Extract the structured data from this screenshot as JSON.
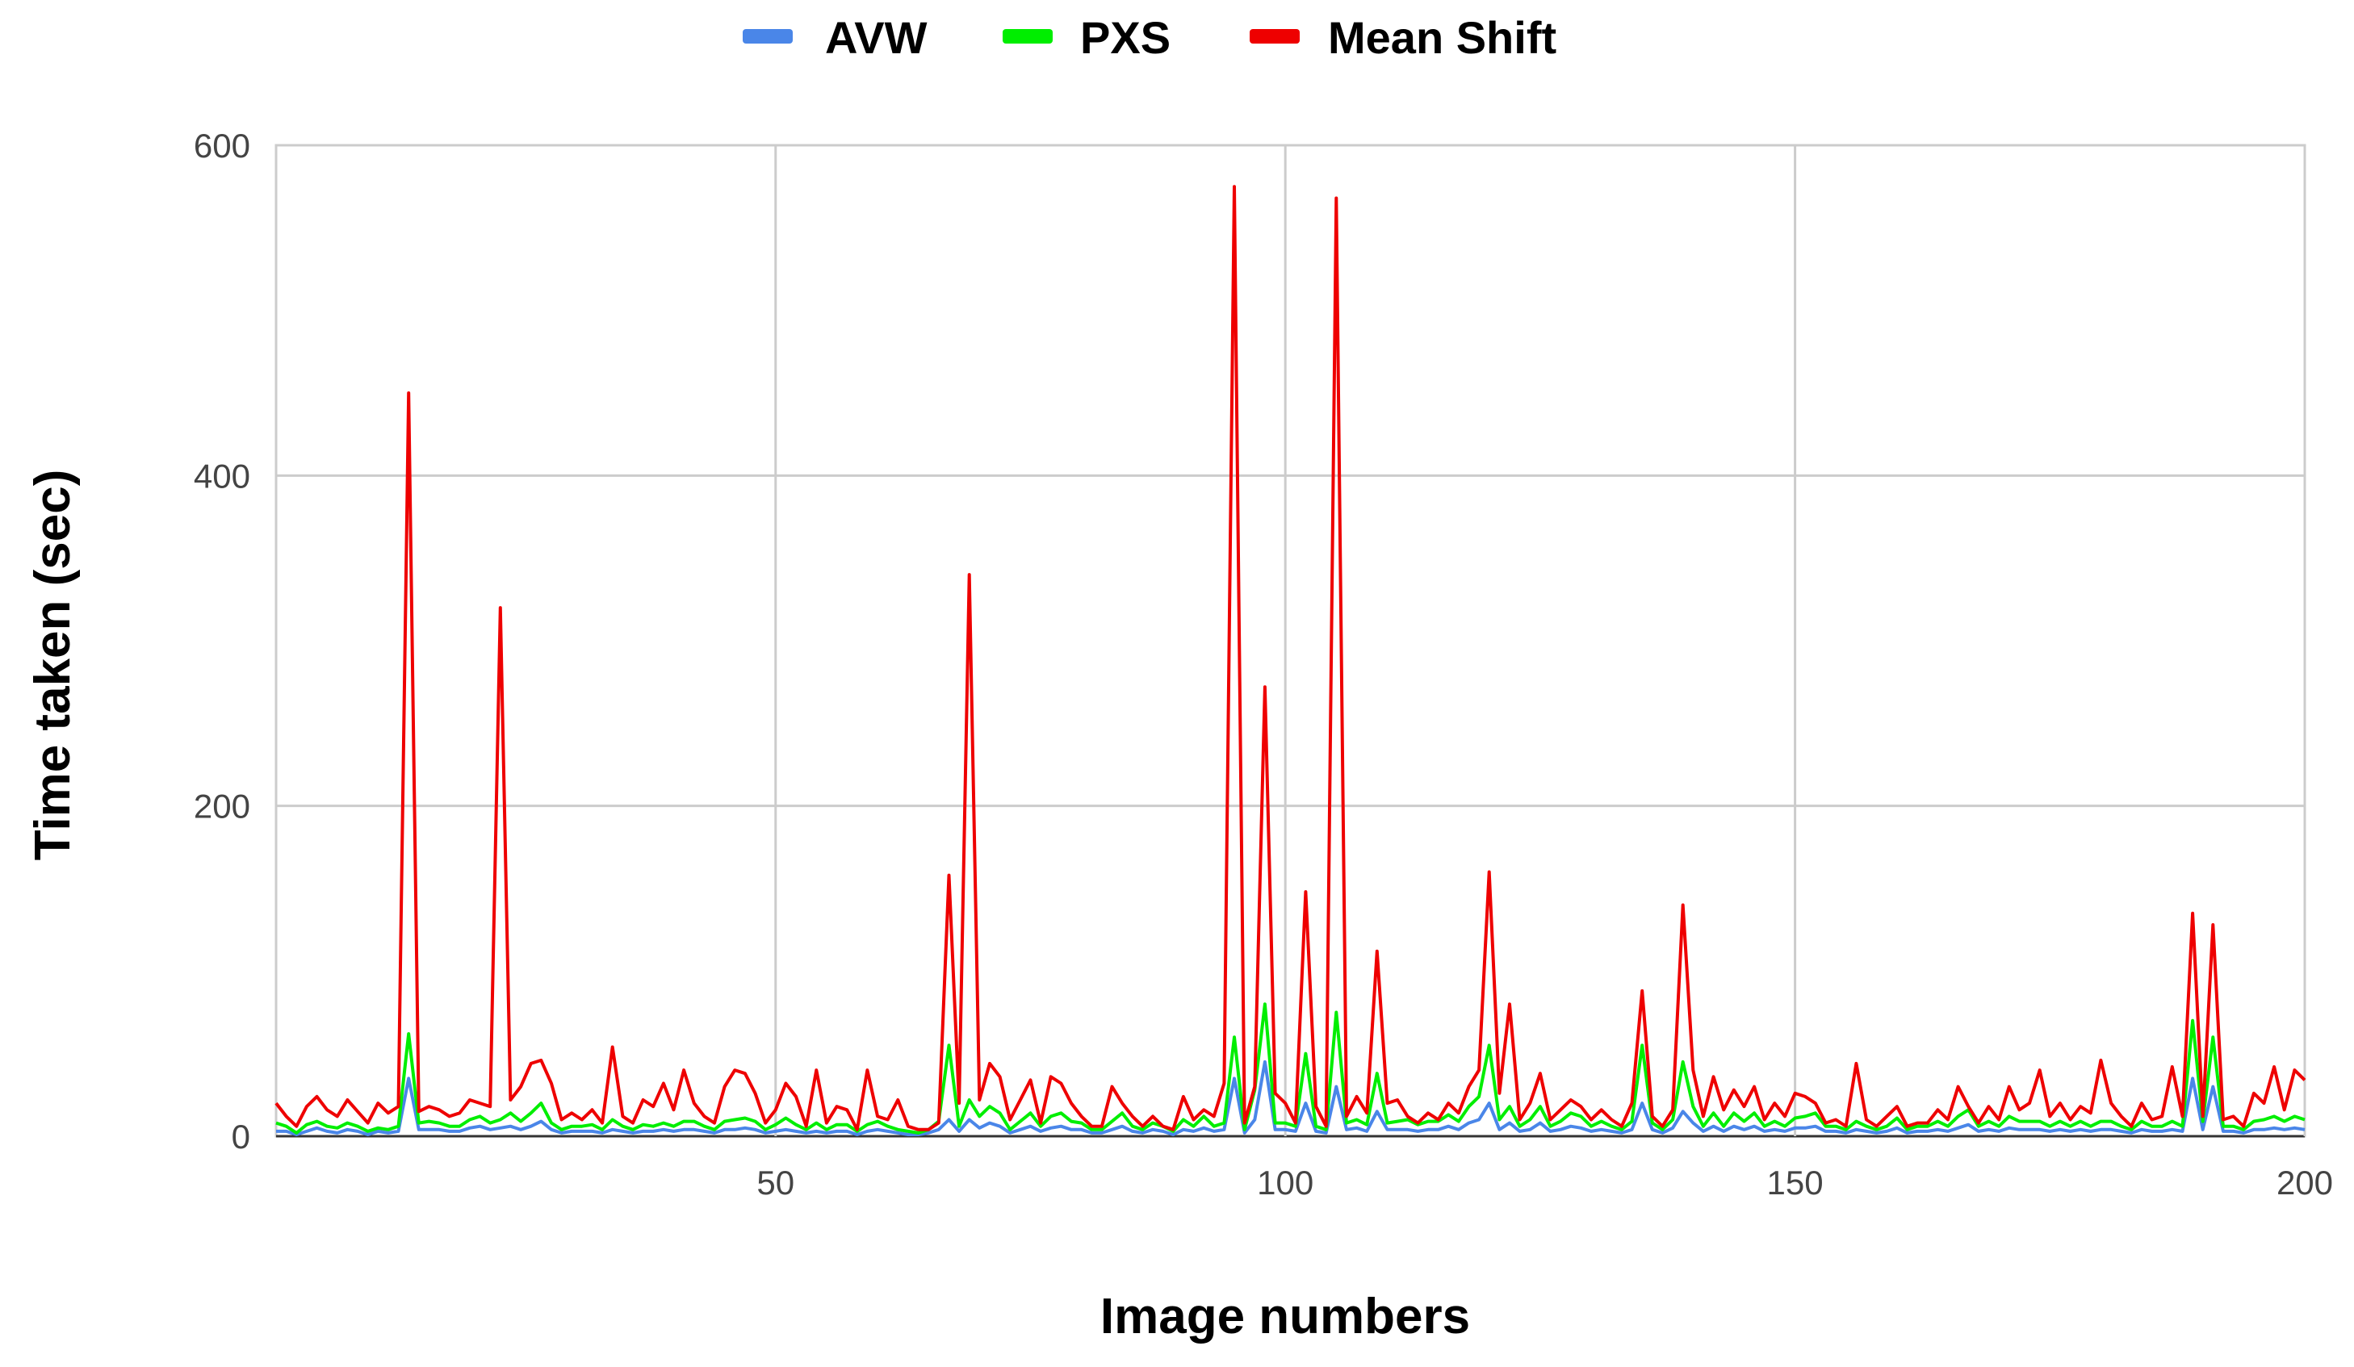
{
  "chart_data": {
    "type": "line",
    "title": "",
    "xlabel": "Image numbers",
    "ylabel": "Time taken (sec)",
    "xlim": [
      1,
      200
    ],
    "ylim": [
      0,
      600
    ],
    "x_ticks": [
      50,
      100,
      150,
      200
    ],
    "y_ticks": [
      0,
      200,
      400,
      600
    ],
    "grid": true,
    "legend": "top",
    "series": [
      {
        "name": "AVW",
        "color": "#4a86e8",
        "values": [
          3,
          3,
          1,
          3,
          5,
          3,
          2,
          4,
          3,
          1,
          3,
          2,
          3,
          35,
          4,
          4,
          4,
          3,
          3,
          5,
          6,
          4,
          5,
          6,
          4,
          6,
          9,
          4,
          2,
          3,
          3,
          3,
          2,
          4,
          3,
          2,
          3,
          3,
          4,
          3,
          4,
          4,
          3,
          2,
          4,
          4,
          5,
          4,
          2,
          3,
          4,
          3,
          2,
          3,
          2,
          3,
          3,
          1,
          3,
          4,
          3,
          2,
          1,
          1,
          2,
          4,
          10,
          3,
          10,
          5,
          8,
          6,
          2,
          4,
          6,
          3,
          5,
          6,
          4,
          4,
          2,
          2,
          4,
          6,
          3,
          2,
          4,
          3,
          1,
          4,
          3,
          5,
          3,
          4,
          35,
          2,
          10,
          45,
          4,
          4,
          3,
          20,
          3,
          2,
          30,
          4,
          5,
          3,
          15,
          4,
          4,
          4,
          3,
          4,
          4,
          6,
          4,
          8,
          10,
          20,
          4,
          8,
          3,
          4,
          8,
          3,
          4,
          6,
          5,
          3,
          4,
          3,
          2,
          4,
          20,
          4,
          2,
          5,
          15,
          8,
          3,
          6,
          3,
          6,
          4,
          6,
          3,
          4,
          3,
          5,
          5,
          6,
          3,
          3,
          2,
          4,
          3,
          2,
          3,
          5,
          2,
          3,
          3,
          4,
          3,
          5,
          7,
          3,
          4,
          3,
          5,
          4,
          4,
          4,
          3,
          4,
          3,
          4,
          3,
          4,
          4,
          3,
          2,
          4,
          3,
          3,
          4,
          3,
          35,
          4,
          30,
          3,
          3,
          2,
          4,
          4,
          5,
          4,
          5,
          4
        ]
      },
      {
        "name": "PXS",
        "color": "#00ee00",
        "values": [
          8,
          6,
          2,
          7,
          9,
          6,
          5,
          8,
          6,
          3,
          5,
          4,
          6,
          62,
          8,
          9,
          8,
          6,
          6,
          10,
          12,
          8,
          10,
          14,
          9,
          14,
          20,
          8,
          4,
          6,
          6,
          7,
          4,
          10,
          6,
          4,
          7,
          6,
          8,
          6,
          9,
          9,
          6,
          4,
          9,
          10,
          11,
          9,
          4,
          7,
          11,
          7,
          4,
          8,
          4,
          7,
          7,
          3,
          7,
          9,
          6,
          4,
          3,
          2,
          4,
          9,
          55,
          6,
          22,
          12,
          18,
          14,
          4,
          9,
          14,
          6,
          12,
          14,
          9,
          8,
          4,
          4,
          9,
          14,
          6,
          4,
          8,
          6,
          3,
          10,
          6,
          12,
          6,
          8,
          60,
          4,
          28,
          80,
          8,
          8,
          6,
          50,
          6,
          4,
          75,
          8,
          10,
          7,
          38,
          8,
          9,
          10,
          7,
          9,
          9,
          13,
          9,
          18,
          24,
          55,
          10,
          18,
          6,
          10,
          18,
          6,
          9,
          14,
          12,
          6,
          9,
          6,
          4,
          9,
          55,
          8,
          4,
          10,
          45,
          18,
          6,
          14,
          6,
          14,
          9,
          14,
          6,
          9,
          6,
          11,
          12,
          14,
          6,
          6,
          4,
          9,
          6,
          4,
          6,
          11,
          4,
          6,
          6,
          9,
          6,
          12,
          16,
          6,
          9,
          6,
          12,
          9,
          9,
          9,
          6,
          9,
          6,
          9,
          6,
          9,
          9,
          6,
          4,
          9,
          6,
          6,
          9,
          6,
          70,
          9,
          60,
          6,
          6,
          4,
          9,
          10,
          12,
          9,
          12,
          10
        ]
      },
      {
        "name": "Mean Shift",
        "color": "#ee0000",
        "values": [
          20,
          12,
          6,
          18,
          24,
          16,
          12,
          22,
          15,
          8,
          20,
          14,
          18,
          450,
          15,
          18,
          16,
          12,
          14,
          22,
          20,
          18,
          320,
          22,
          30,
          44,
          46,
          32,
          10,
          14,
          10,
          16,
          8,
          54,
          12,
          8,
          22,
          18,
          32,
          16,
          40,
          20,
          12,
          8,
          30,
          40,
          38,
          26,
          8,
          16,
          32,
          24,
          6,
          40,
          8,
          18,
          16,
          4,
          40,
          12,
          10,
          22,
          6,
          4,
          4,
          8,
          158,
          20,
          340,
          22,
          44,
          36,
          10,
          22,
          34,
          8,
          36,
          32,
          20,
          12,
          6,
          6,
          30,
          20,
          12,
          6,
          12,
          6,
          4,
          24,
          10,
          16,
          12,
          32,
          575,
          8,
          30,
          272,
          26,
          20,
          8,
          148,
          18,
          6,
          568,
          12,
          24,
          14,
          112,
          20,
          22,
          12,
          8,
          14,
          10,
          20,
          14,
          30,
          40,
          160,
          26,
          80,
          10,
          20,
          38,
          10,
          16,
          22,
          18,
          10,
          16,
          10,
          6,
          20,
          88,
          12,
          6,
          16,
          140,
          40,
          12,
          36,
          16,
          28,
          18,
          30,
          10,
          20,
          12,
          26,
          24,
          20,
          8,
          10,
          6,
          44,
          10,
          6,
          12,
          18,
          6,
          8,
          8,
          16,
          10,
          30,
          18,
          8,
          18,
          10,
          30,
          16,
          20,
          40,
          12,
          20,
          10,
          18,
          14,
          46,
          20,
          12,
          6,
          20,
          10,
          12,
          42,
          12,
          135,
          12,
          128,
          10,
          12,
          6,
          26,
          20,
          42,
          16,
          40,
          34
        ]
      }
    ]
  }
}
